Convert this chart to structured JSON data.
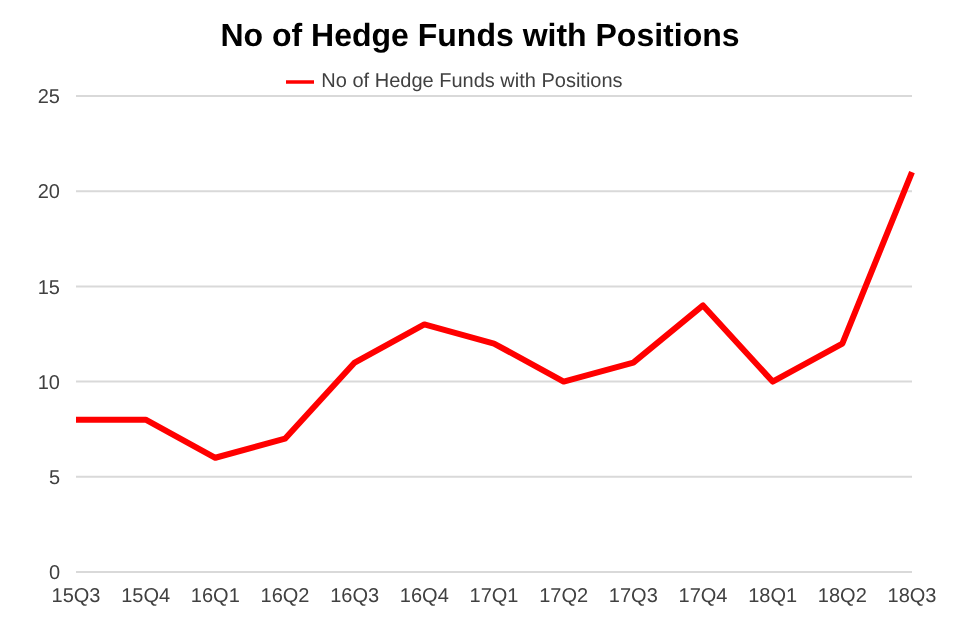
{
  "chart_data": {
    "type": "line",
    "title": "No of Hedge Funds with Positions",
    "categories": [
      "15Q3",
      "15Q4",
      "16Q1",
      "16Q2",
      "16Q3",
      "16Q4",
      "17Q1",
      "17Q2",
      "17Q3",
      "17Q4",
      "18Q1",
      "18Q2",
      "18Q3"
    ],
    "series": [
      {
        "name": "No of Hedge Funds with Positions",
        "color": "#ff0000",
        "values": [
          8,
          8,
          6,
          7,
          11,
          13,
          12,
          10,
          11,
          14,
          10,
          12,
          21
        ]
      }
    ],
    "ylim": [
      0,
      25
    ],
    "yticks": [
      0,
      5,
      10,
      15,
      20,
      25
    ],
    "grid": "y",
    "legend": "top",
    "marker": "none",
    "line_style": "solid"
  }
}
